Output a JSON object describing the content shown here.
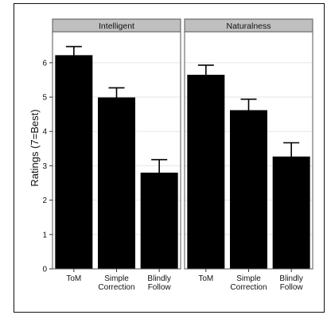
{
  "chart_data": {
    "type": "bar",
    "ylabel": "Ratings (7=Best)",
    "ylim": [
      0,
      6.9
    ],
    "yticks": [
      0,
      1,
      2,
      3,
      4,
      5,
      6
    ],
    "grid": true,
    "categories": [
      "ToM",
      "Simple\nCorrection",
      "Blindly\nFollow"
    ],
    "panels": [
      {
        "name": "Intelligent",
        "values": [
          6.22,
          4.99,
          2.8
        ],
        "errors": [
          0.25,
          0.28,
          0.38
        ]
      },
      {
        "name": "Naturalness",
        "values": [
          5.65,
          4.62,
          3.27
        ],
        "errors": [
          0.28,
          0.32,
          0.4
        ]
      }
    ],
    "colors": {
      "bar": "#000000",
      "panel_bg": "#ffffff",
      "strip_bg": "#bfbfbf",
      "grid": "#e6e6e6",
      "border": "#555555"
    }
  }
}
